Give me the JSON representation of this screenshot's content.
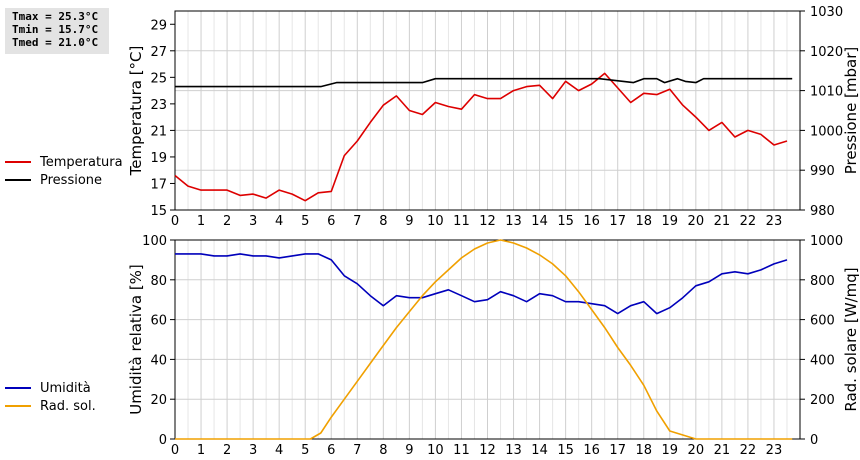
{
  "stats": {
    "tmax": "Tmax = 25.3°C",
    "tmin": "Tmin = 15.7°C",
    "tmed": "Tmed = 21.0°C"
  },
  "legend_top": [
    {
      "label": "Temperatura",
      "color": "#dd0000"
    },
    {
      "label": "Pressione",
      "color": "#000000"
    }
  ],
  "legend_bottom": [
    {
      "label": "Umidità",
      "color": "#0000bb"
    },
    {
      "label": "Rad. sol.",
      "color": "#f0a000"
    }
  ],
  "chart_data": [
    {
      "type": "line",
      "ylabel": "Temperatura [°C]",
      "y2label": "Pressione [mbar]",
      "xlim": [
        0,
        24
      ],
      "ylim": [
        15,
        30
      ],
      "y2lim": [
        980,
        1030
      ],
      "xticks": [
        "0",
        "1",
        "2",
        "3",
        "4",
        "5",
        "6",
        "7",
        "8",
        "9",
        "10",
        "11",
        "12",
        "13",
        "14",
        "15",
        "16",
        "17",
        "18",
        "19",
        "20",
        "21",
        "22",
        "23"
      ],
      "yticks": [
        "15",
        "17",
        "19",
        "21",
        "23",
        "25",
        "27",
        "29"
      ],
      "y2ticks": [
        "980",
        "990",
        "1000",
        "1010",
        "1020",
        "1030"
      ],
      "grid": true,
      "series": [
        {
          "name": "Temperatura",
          "color": "#dd0000",
          "axis": "left",
          "x": [
            0,
            0.5,
            1,
            1.5,
            2,
            2.5,
            3,
            3.5,
            4,
            4.5,
            5,
            5.5,
            6,
            6.5,
            7,
            7.5,
            8,
            8.5,
            9,
            9.5,
            10,
            10.5,
            11,
            11.5,
            12,
            12.5,
            13,
            13.5,
            14,
            14.5,
            15,
            15.5,
            16,
            16.5,
            17,
            17.5,
            18,
            18.5,
            19,
            19.5,
            20,
            20.5,
            21,
            21.5,
            22,
            22.5,
            23,
            23.5
          ],
          "y": [
            17.6,
            16.8,
            16.5,
            16.5,
            16.5,
            16.1,
            16.2,
            15.9,
            16.5,
            16.2,
            15.7,
            16.3,
            16.4,
            19.1,
            20.2,
            21.6,
            22.9,
            23.6,
            22.5,
            22.2,
            23.1,
            22.8,
            22.6,
            23.7,
            23.4,
            23.4,
            24.0,
            24.3,
            24.4,
            23.4,
            24.7,
            24.0,
            24.5,
            25.3,
            24.2,
            23.1,
            23.8,
            23.7,
            24.1,
            22.9,
            22.0,
            21.0,
            21.6,
            20.5,
            21.0,
            20.7,
            19.9,
            20.2
          ]
        },
        {
          "name": "Pressione",
          "color": "#000000",
          "axis": "right",
          "x": [
            0,
            5.6,
            6.2,
            9.5,
            10,
            16.3,
            17.6,
            18,
            18.5,
            18.8,
            19.3,
            19.6,
            20,
            20.3,
            23.7
          ],
          "y": [
            1011,
            1011,
            1012,
            1012,
            1013,
            1013,
            1012,
            1013,
            1013,
            1012,
            1013,
            1012.3,
            1012,
            1013,
            1013
          ]
        }
      ]
    },
    {
      "type": "line",
      "ylabel": "Umidità relativa [%]",
      "y2label": "Rad. solare [W/mq]",
      "xlim": [
        0,
        24
      ],
      "ylim": [
        0,
        100
      ],
      "y2lim": [
        0,
        1000
      ],
      "xticks": [
        "0",
        "1",
        "2",
        "3",
        "4",
        "5",
        "6",
        "7",
        "8",
        "9",
        "10",
        "11",
        "12",
        "13",
        "14",
        "15",
        "16",
        "17",
        "18",
        "19",
        "20",
        "21",
        "22",
        "23"
      ],
      "yticks": [
        "0",
        "20",
        "40",
        "60",
        "80",
        "100"
      ],
      "y2ticks": [
        "0",
        "200",
        "400",
        "600",
        "800",
        "1000"
      ],
      "grid": true,
      "series": [
        {
          "name": "Umidità",
          "color": "#0000bb",
          "axis": "left",
          "x": [
            0,
            0.5,
            1,
            1.5,
            2,
            2.5,
            3,
            3.5,
            4,
            4.5,
            5,
            5.5,
            6,
            6.5,
            7,
            7.5,
            8,
            8.5,
            9,
            9.5,
            10,
            10.5,
            11,
            11.5,
            12,
            12.5,
            13,
            13.5,
            14,
            14.5,
            15,
            15.5,
            16,
            16.5,
            17,
            17.5,
            18,
            18.5,
            19,
            19.5,
            20,
            20.5,
            21,
            21.5,
            22,
            22.5,
            23,
            23.5
          ],
          "y": [
            93,
            93,
            93,
            92,
            92,
            93,
            92,
            92,
            91,
            92,
            93,
            93,
            90,
            82,
            78,
            72,
            67,
            72,
            71,
            71,
            73,
            75,
            72,
            69,
            70,
            74,
            72,
            69,
            73,
            72,
            69,
            69,
            68,
            67,
            63,
            67,
            69,
            63,
            66,
            71,
            77,
            79,
            83,
            84,
            83,
            85,
            88,
            90
          ]
        },
        {
          "name": "Rad. sol.",
          "color": "#f0a000",
          "axis": "right",
          "x": [
            0,
            5.2,
            5.6,
            6,
            6.5,
            7,
            7.5,
            8,
            8.5,
            9,
            9.5,
            10,
            10.5,
            11,
            11.5,
            12,
            12.5,
            13,
            13.5,
            14,
            14.5,
            15,
            15.5,
            16,
            16.5,
            17,
            17.5,
            18,
            18.5,
            19,
            19.5,
            20,
            21,
            22,
            23,
            23.7
          ],
          "y": [
            0,
            0,
            30,
            110,
            200,
            290,
            380,
            470,
            560,
            640,
            720,
            790,
            850,
            910,
            955,
            985,
            1000,
            985,
            960,
            925,
            880,
            820,
            740,
            650,
            560,
            460,
            370,
            270,
            140,
            40,
            20,
            0,
            0,
            0,
            0,
            0
          ]
        }
      ]
    }
  ]
}
